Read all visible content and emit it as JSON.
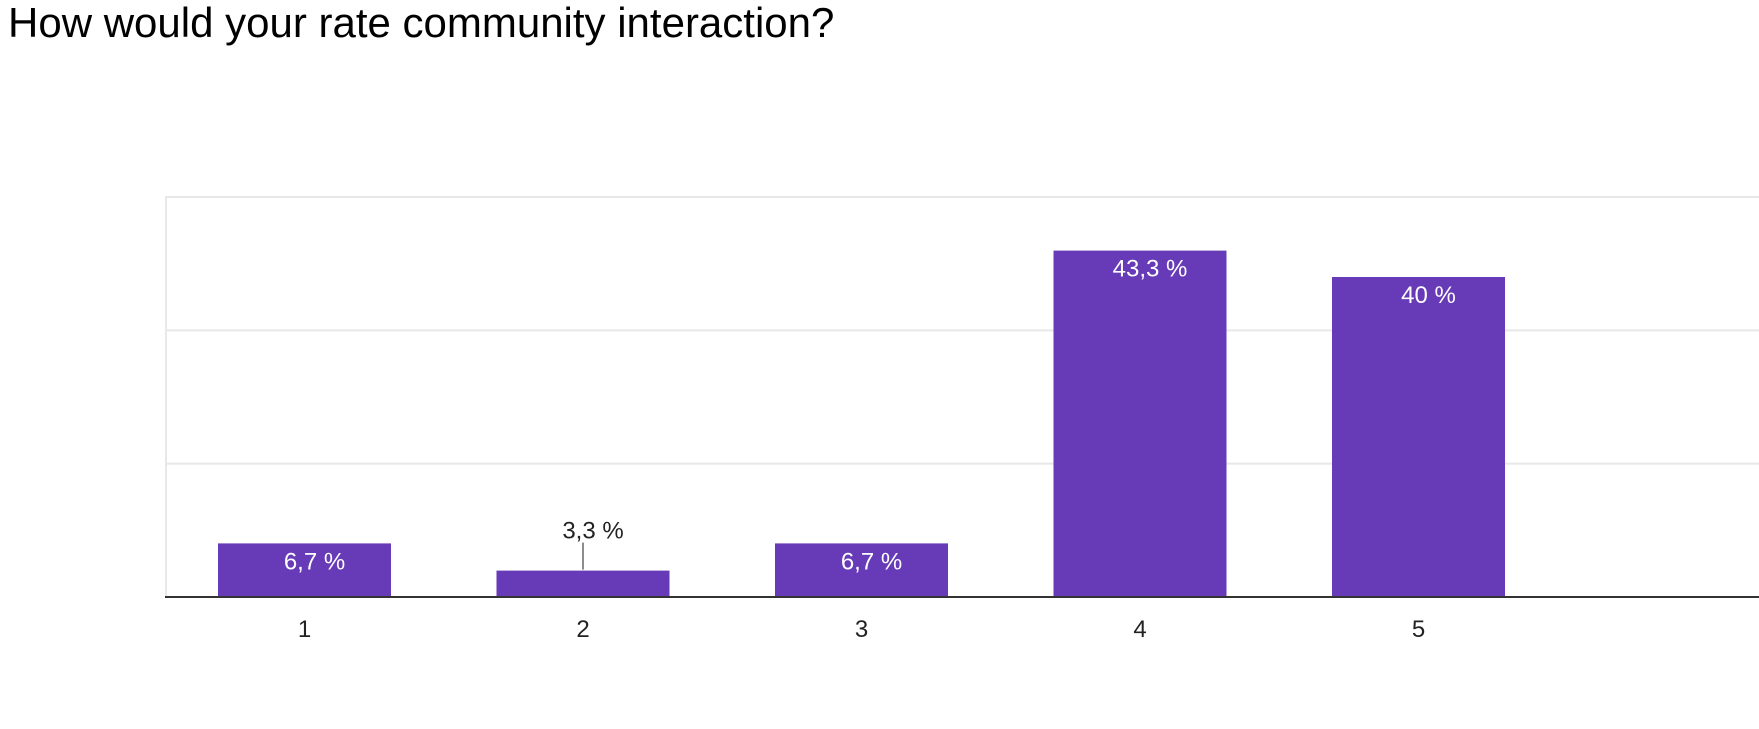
{
  "chart_data": {
    "type": "bar",
    "title": "How would your rate community interaction?",
    "categories": [
      "1",
      "2",
      "3",
      "4",
      "5"
    ],
    "values": [
      6.7,
      3.3,
      6.7,
      43.3,
      40
    ],
    "value_labels": [
      "6,7 %",
      "3,3 %",
      "6,7 %",
      "43,3 %",
      "40 %"
    ],
    "xlabel": "",
    "ylabel": "",
    "ylim": [
      0,
      50
    ],
    "grid": true,
    "legend": "none",
    "colors": {
      "bar": "#673ab7",
      "grid": "#e8e8e8",
      "axis": "#333333",
      "label_inside": "#ffffff",
      "label_outside": "#222222"
    }
  }
}
